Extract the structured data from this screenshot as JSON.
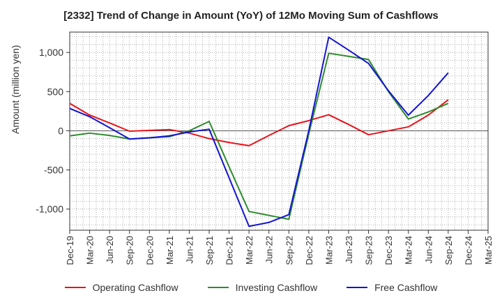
{
  "chart_data": {
    "type": "line",
    "title": "[2332]  Trend of Change in Amount (YoY) of 12Mo Moving Sum of Cashflows",
    "xlabel": "",
    "ylabel": "Amount (million yen)",
    "ylim": [
      -1270,
      1260
    ],
    "yticks": [
      -1000,
      -500,
      0,
      500,
      1000
    ],
    "ytick_labels": [
      "-1,000",
      "-500",
      "0",
      "500",
      "1,000"
    ],
    "categories": [
      "Dec-19",
      "Mar-20",
      "Jun-20",
      "Sep-20",
      "Dec-20",
      "Mar-21",
      "Jun-21",
      "Sep-21",
      "Dec-21",
      "Mar-22",
      "Jun-22",
      "Sep-22",
      "Dec-22",
      "Mar-23",
      "Jun-23",
      "Sep-23",
      "Dec-23",
      "Mar-24",
      "Jun-24",
      "Sep-24",
      "Dec-24",
      "Mar-25"
    ],
    "grid": true,
    "legend_position": "bottom",
    "series": [
      {
        "name": "Operating Cashflow",
        "color": "#e8141b",
        "values": [
          350,
          200,
          100,
          -5,
          5,
          15,
          -30,
          -100,
          -150,
          -190,
          -60,
          65,
          130,
          205,
          80,
          -50,
          0,
          50,
          200,
          395,
          null,
          null
        ]
      },
      {
        "name": "Investing Cashflow",
        "color": "#2e8b2e",
        "values": [
          -65,
          -30,
          -60,
          -105,
          -90,
          -75,
          0,
          120,
          -460,
          -1030,
          -1080,
          -1130,
          -40,
          990,
          950,
          910,
          500,
          150,
          240,
          350,
          null,
          null
        ]
      },
      {
        "name": "Free Cashflow",
        "color": "#1414d2",
        "values": [
          285,
          180,
          40,
          -105,
          -90,
          -65,
          -15,
          20,
          -600,
          -1220,
          -1170,
          -1070,
          0,
          1195,
          1030,
          860,
          510,
          200,
          450,
          740,
          null,
          null
        ]
      }
    ]
  }
}
